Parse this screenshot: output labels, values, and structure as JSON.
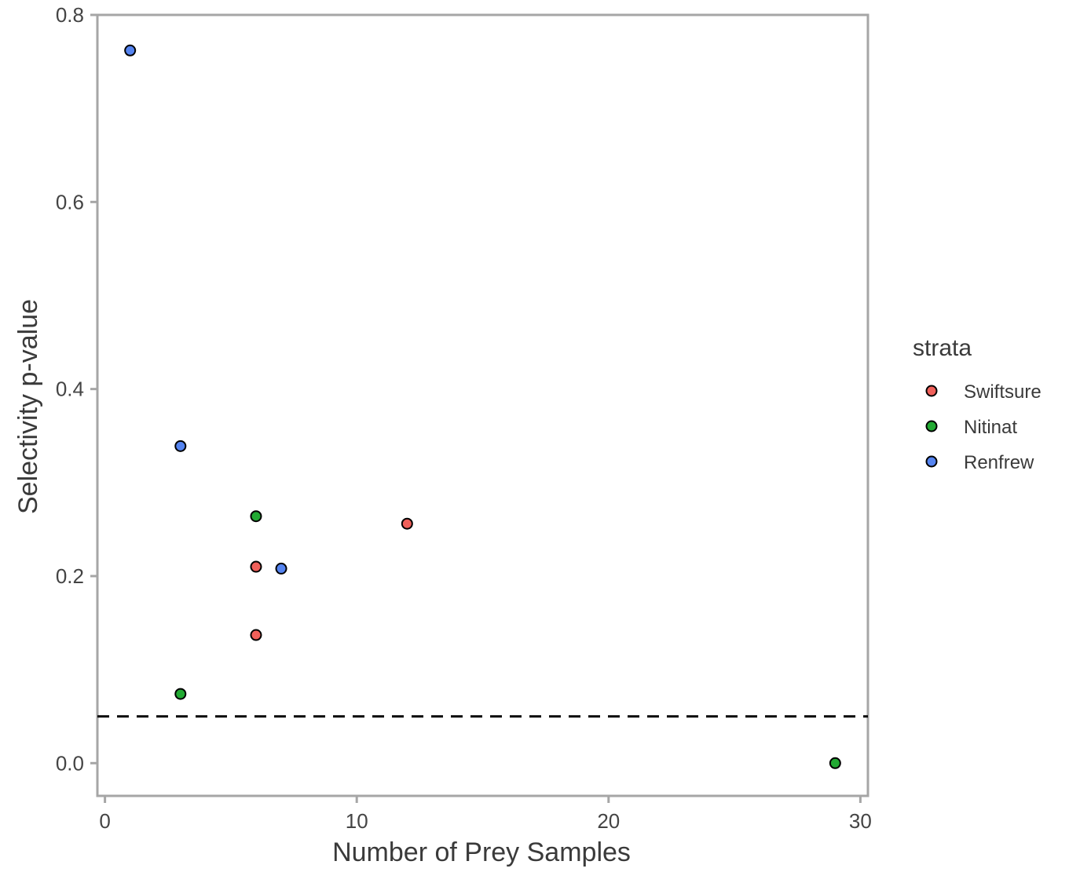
{
  "chart_data": {
    "type": "scatter",
    "xlabel": "Number of Prey Samples",
    "ylabel": "Selectivity p-value",
    "xlim": [
      -0.3,
      30.3
    ],
    "ylim": [
      -0.035,
      0.8
    ],
    "x_ticks": [
      0,
      10,
      20,
      30
    ],
    "x_tick_labels": [
      "0",
      "10",
      "20",
      "30"
    ],
    "y_ticks": [
      0.0,
      0.2,
      0.4,
      0.6,
      0.8
    ],
    "y_tick_labels": [
      "0.0",
      "0.2",
      "0.4",
      "0.6",
      "0.8"
    ],
    "reference_line": {
      "y": 0.05,
      "style": "dashed",
      "color": "#000000"
    },
    "grid": false,
    "legend": {
      "title": "strata",
      "placement": "right"
    },
    "series": [
      {
        "name": "Swiftsure",
        "color": "#F0605A",
        "points": [
          {
            "x": 6,
            "y": 0.21
          },
          {
            "x": 6,
            "y": 0.137
          },
          {
            "x": 12,
            "y": 0.256
          }
        ]
      },
      {
        "name": "Nitinat",
        "color": "#22AA33",
        "points": [
          {
            "x": 3,
            "y": 0.074
          },
          {
            "x": 6,
            "y": 0.264
          },
          {
            "x": 29,
            "y": 0.0
          }
        ]
      },
      {
        "name": "Renfrew",
        "color": "#5584F0",
        "points": [
          {
            "x": 1,
            "y": 0.762
          },
          {
            "x": 3,
            "y": 0.339
          },
          {
            "x": 7,
            "y": 0.208
          }
        ]
      }
    ]
  }
}
